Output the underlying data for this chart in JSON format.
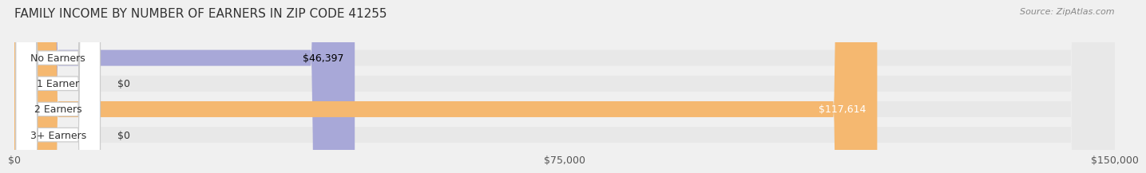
{
  "title": "FAMILY INCOME BY NUMBER OF EARNERS IN ZIP CODE 41255",
  "source_text": "Source: ZipAtlas.com",
  "categories": [
    "No Earners",
    "1 Earner",
    "2 Earners",
    "3+ Earners"
  ],
  "values": [
    46397,
    0,
    117614,
    0
  ],
  "bar_colors": [
    "#a8a8d8",
    "#f4a0b0",
    "#f5b870",
    "#f4a0b0"
  ],
  "label_colors": [
    "#000000",
    "#000000",
    "#ffffff",
    "#000000"
  ],
  "label_texts": [
    "$46,397",
    "$0",
    "$117,614",
    "$0"
  ],
  "xlim": [
    0,
    150000
  ],
  "xtick_values": [
    0,
    75000,
    150000
  ],
  "xtick_labels": [
    "$0",
    "$75,000",
    "$150,000"
  ],
  "background_color": "#f0f0f0",
  "bar_background_color": "#e8e8e8",
  "title_fontsize": 11,
  "bar_height": 0.62,
  "label_fontsize": 9,
  "category_fontsize": 9
}
